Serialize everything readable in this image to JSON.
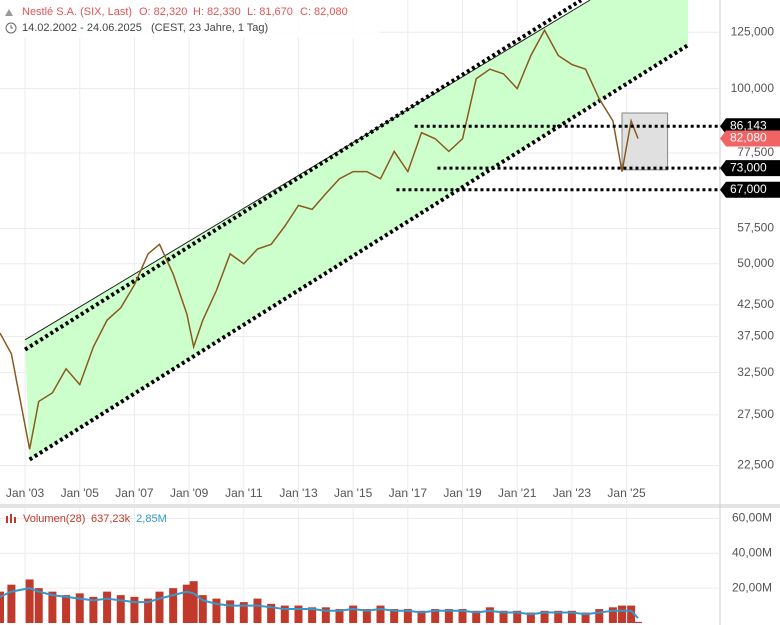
{
  "chart_data": [
    {
      "type": "line",
      "title": "Nestlé S.A. (SIX, Last)",
      "ohlc": [
        "O: 82,320",
        "H: 82,330",
        "L: 81,670",
        "C: 82,080"
      ],
      "subtitle": "14.02.2002 - 24.06.2025",
      "note": "(CEST, 23 Jahre, 1 Tag)",
      "log_scale": true,
      "grid": true,
      "xlim": [
        "2002-02",
        "2028-06"
      ],
      "xticks": [
        {
          "value": "2003-01",
          "label": "Jan '03"
        },
        {
          "value": "2005-01",
          "label": "Jan '05"
        },
        {
          "value": "2007-01",
          "label": "Jan '07"
        },
        {
          "value": "2009-01",
          "label": "Jan '09"
        },
        {
          "value": "2011-01",
          "label": "Jan '11"
        },
        {
          "value": "2013-01",
          "label": "Jan '13"
        },
        {
          "value": "2015-01",
          "label": "Jan '15"
        },
        {
          "value": "2017-01",
          "label": "Jan '17"
        },
        {
          "value": "2019-01",
          "label": "Jan '19"
        },
        {
          "value": "2021-01",
          "label": "Jan '21"
        },
        {
          "value": "2023-01",
          "label": "Jan '23"
        },
        {
          "value": "2025-01",
          "label": "Jan '25"
        }
      ],
      "ylim": [
        19400,
        142000
      ],
      "yticks": [
        {
          "value": 22500,
          "label": "22,500"
        },
        {
          "value": 27500,
          "label": "27,500"
        },
        {
          "value": 32500,
          "label": "32,500"
        },
        {
          "value": 37500,
          "label": "37,500"
        },
        {
          "value": 42500,
          "label": "42,500"
        },
        {
          "value": 50000,
          "label": "50,000"
        },
        {
          "value": 57500,
          "label": "57,500"
        },
        {
          "value": 77500,
          "label": "77,500"
        },
        {
          "value": 100000,
          "label": "100,000"
        },
        {
          "value": 125000,
          "label": "125,000"
        }
      ],
      "x": [
        "2002-02",
        "2002-07",
        "2003-03",
        "2003-07",
        "2004-01",
        "2004-07",
        "2005-01",
        "2005-07",
        "2006-01",
        "2006-07",
        "2007-01",
        "2007-07",
        "2007-12",
        "2008-06",
        "2008-12",
        "2009-03",
        "2009-07",
        "2010-01",
        "2010-07",
        "2011-01",
        "2011-07",
        "2012-01",
        "2012-07",
        "2013-01",
        "2013-07",
        "2014-01",
        "2014-07",
        "2015-01",
        "2015-07",
        "2016-01",
        "2016-07",
        "2017-01",
        "2017-07",
        "2018-01",
        "2018-07",
        "2019-01",
        "2019-07",
        "2020-01",
        "2020-07",
        "2021-01",
        "2021-07",
        "2022-01",
        "2022-07",
        "2023-01",
        "2023-07",
        "2024-01",
        "2024-07",
        "2024-11",
        "2025-03",
        "2025-06"
      ],
      "series": [
        {
          "color": "#8a5a20",
          "values": [
            38000,
            35000,
            24000,
            29000,
            30000,
            33000,
            31000,
            36000,
            40000,
            42000,
            46000,
            52000,
            54000,
            48000,
            41000,
            36000,
            40000,
            45000,
            52000,
            50000,
            53000,
            54000,
            58000,
            63000,
            62000,
            66000,
            70000,
            72000,
            72000,
            70000,
            78000,
            72000,
            84000,
            82000,
            78000,
            82000,
            104000,
            108000,
            106000,
            100000,
            114000,
            126000,
            114000,
            110000,
            108000,
            96000,
            88000,
            72000,
            88000,
            82080
          ]
        }
      ],
      "channel": {
        "fill": "#ccffcc",
        "upper": [
          [
            "2003-01",
            37000
          ],
          [
            "2023-09",
            142000
          ]
        ],
        "upper_dotted": [
          [
            "2003-01",
            35600
          ],
          [
            "2023-05",
            141850
          ]
        ],
        "lower": [
          [
            "2003-03",
            23040
          ],
          [
            "2027-04",
            118800
          ]
        ]
      },
      "box": {
        "x": [
          "2024-11",
          "2026-07"
        ],
        "y": [
          72500,
          90800
        ]
      },
      "levels": [
        {
          "value": 86143,
          "label": "86,143",
          "start": "2017-04",
          "color": "#000000"
        },
        {
          "value": 82080,
          "label": "82,080",
          "color": "#f06464"
        },
        {
          "value": 73000,
          "label": "73,000",
          "start": "2018-02",
          "color": "#000000"
        },
        {
          "value": 67000,
          "label": "67,000",
          "start": "2016-08",
          "color": "#000000"
        }
      ]
    },
    {
      "type": "bar",
      "name": "Volumen(28)",
      "readout": [
        {
          "value": 637230,
          "label": "637,23k",
          "color": "#c0392b"
        },
        {
          "value": 2850000,
          "label": "2,85M",
          "color": "#3399cc"
        }
      ],
      "grid": true,
      "ylim": [
        0,
        66000000
      ],
      "yticks": [
        {
          "value": 20000000,
          "label": "20,00M"
        },
        {
          "value": 40000000,
          "label": "40,00M"
        },
        {
          "value": 60000000,
          "label": "60,00M"
        }
      ],
      "series": [
        {
          "color": "#c0392b",
          "values": [
            18000000,
            22000000,
            25000000,
            20000000,
            18000000,
            16000000,
            17000000,
            15000000,
            18000000,
            16000000,
            15000000,
            14000000,
            18000000,
            20000000,
            22000000,
            24000000,
            16000000,
            14000000,
            13000000,
            12000000,
            14000000,
            11000000,
            10000000,
            10000000,
            9000000,
            9000000,
            8000000,
            10000000,
            8000000,
            10000000,
            8000000,
            8000000,
            7000000,
            8000000,
            8000000,
            8000000,
            7000000,
            9000000,
            7000000,
            7000000,
            6000000,
            7000000,
            7000000,
            7000000,
            6000000,
            8000000,
            9000000,
            10000000,
            10000000,
            637230
          ]
        },
        {
          "color": "#3399cc",
          "values": [
            15000000,
            18000000,
            20000000,
            18000000,
            16000000,
            15000000,
            14000000,
            13000000,
            14000000,
            13000000,
            12000000,
            12000000,
            14000000,
            16000000,
            18000000,
            17000000,
            13000000,
            11000000,
            10000000,
            10000000,
            10000000,
            9000000,
            8000000,
            8000000,
            8000000,
            7000000,
            7000000,
            8000000,
            7000000,
            8000000,
            7000000,
            7000000,
            6000000,
            7000000,
            7000000,
            7000000,
            6000000,
            7000000,
            6000000,
            6000000,
            5000000,
            6000000,
            6000000,
            6000000,
            5000000,
            6000000,
            7000000,
            7000000,
            7000000,
            2850000
          ]
        }
      ]
    }
  ]
}
